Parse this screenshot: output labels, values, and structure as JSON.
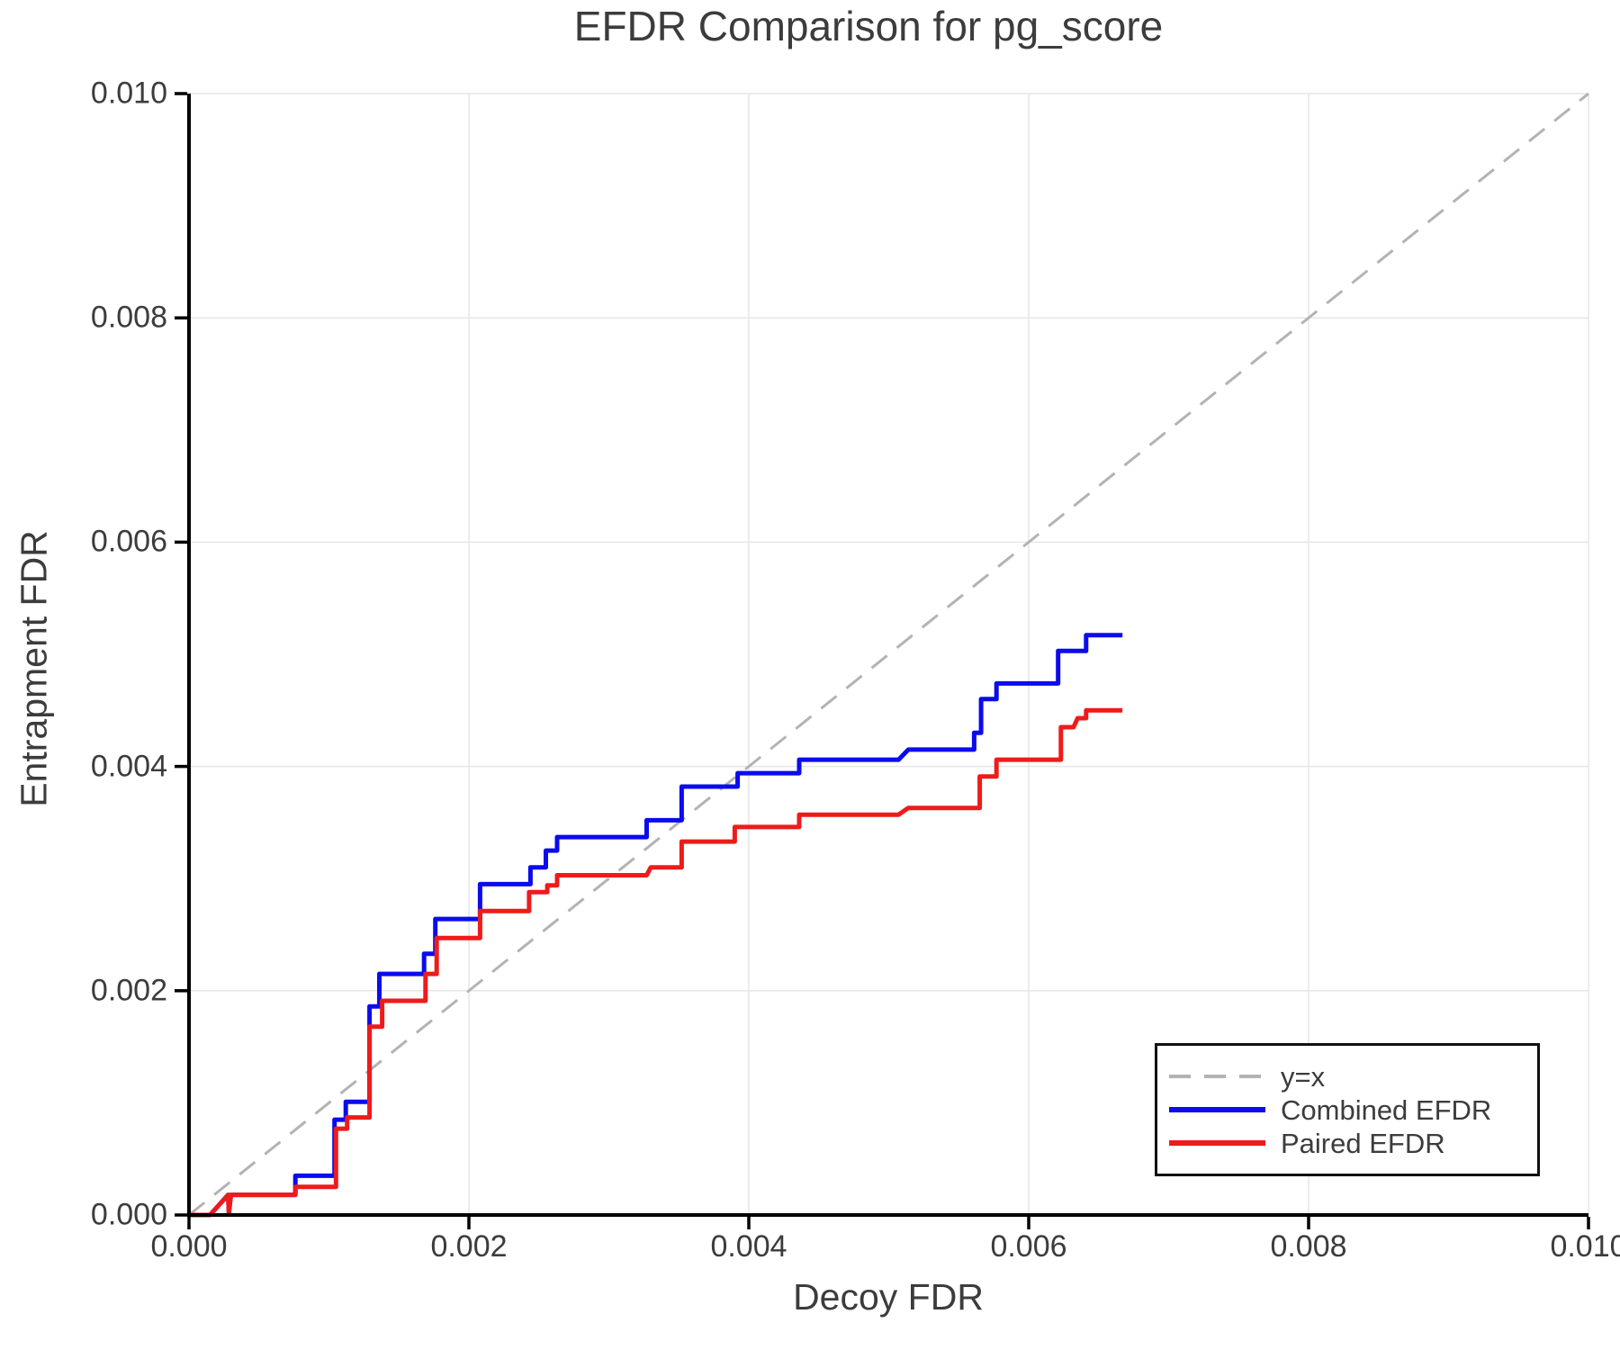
{
  "title": "EFDR Comparison for pg_score",
  "axes": {
    "x_label": "Decoy FDR",
    "y_label": "Entrapment FDR"
  },
  "legend": {
    "position": "lower right",
    "items": [
      {
        "label": "y=x"
      },
      {
        "label": "Combined EFDR"
      },
      {
        "label": "Paired EFDR"
      }
    ]
  },
  "colors": {
    "reference_line": "#b3b3b3",
    "combined": "#0b0bee",
    "paired": "#ee1b1b",
    "grid": "#e6e6e6",
    "axis": "#000000",
    "text": "#3c3c3c"
  },
  "chart_data": {
    "type": "line",
    "line_style": "step",
    "title": "EFDR Comparison for pg_score",
    "xlabel": "Decoy FDR",
    "ylabel": "Entrapment FDR",
    "xlim": [
      0.0,
      0.01
    ],
    "ylim": [
      0.0,
      0.01
    ],
    "grid": true,
    "legend_position": "lower right",
    "xticks": [
      0.0,
      0.002,
      0.004,
      0.006,
      0.008,
      0.01
    ],
    "xtick_labels": [
      "0.000",
      "0.002",
      "0.004",
      "0.006",
      "0.008",
      "0.010"
    ],
    "yticks": [
      0.0,
      0.002,
      0.004,
      0.006,
      0.008,
      0.01
    ],
    "ytick_labels": [
      "0.000",
      "0.002",
      "0.004",
      "0.006",
      "0.008",
      "0.010"
    ],
    "reference_line": {
      "name": "y=x",
      "style": "dashed",
      "color": "#b3b3b3",
      "from": [
        0.0,
        0.0
      ],
      "to": [
        0.01,
        0.01
      ]
    },
    "series": [
      {
        "name": "Combined EFDR",
        "color": "#0b0bee",
        "points": [
          [
            0.0,
            0.0
          ],
          [
            0.00015,
            0.0
          ],
          [
            0.00028,
            0.00018
          ],
          [
            0.000285,
            2e-05
          ],
          [
            0.0003,
            0.00018
          ],
          [
            0.00076,
            0.00018
          ],
          [
            0.00076,
            0.00035
          ],
          [
            0.00104,
            0.00035
          ],
          [
            0.00104,
            0.00085
          ],
          [
            0.00112,
            0.00085
          ],
          [
            0.00112,
            0.00101
          ],
          [
            0.00129,
            0.00101
          ],
          [
            0.00129,
            0.00186
          ],
          [
            0.00136,
            0.00186
          ],
          [
            0.00136,
            0.00215
          ],
          [
            0.00168,
            0.00215
          ],
          [
            0.00168,
            0.00233
          ],
          [
            0.00176,
            0.00233
          ],
          [
            0.00176,
            0.00264
          ],
          [
            0.00208,
            0.00264
          ],
          [
            0.00208,
            0.00295
          ],
          [
            0.00244,
            0.00295
          ],
          [
            0.00244,
            0.0031
          ],
          [
            0.00255,
            0.0031
          ],
          [
            0.00255,
            0.00325
          ],
          [
            0.00263,
            0.00325
          ],
          [
            0.00263,
            0.00337
          ],
          [
            0.00327,
            0.00337
          ],
          [
            0.00327,
            0.00352
          ],
          [
            0.00352,
            0.00352
          ],
          [
            0.00352,
            0.00382
          ],
          [
            0.00392,
            0.00382
          ],
          [
            0.00392,
            0.00394
          ],
          [
            0.00436,
            0.00394
          ],
          [
            0.00436,
            0.00406
          ],
          [
            0.00507,
            0.00406
          ],
          [
            0.00514,
            0.00415
          ],
          [
            0.00561,
            0.00415
          ],
          [
            0.00561,
            0.0043
          ],
          [
            0.00566,
            0.0043
          ],
          [
            0.00566,
            0.0046
          ],
          [
            0.00577,
            0.0046
          ],
          [
            0.00577,
            0.00474
          ],
          [
            0.00621,
            0.00474
          ],
          [
            0.00621,
            0.00503
          ],
          [
            0.00641,
            0.00503
          ],
          [
            0.00641,
            0.00517
          ],
          [
            0.00667,
            0.00517
          ]
        ]
      },
      {
        "name": "Paired EFDR",
        "color": "#ee1b1b",
        "points": [
          [
            0.0,
            0.0
          ],
          [
            0.00015,
            0.0
          ],
          [
            0.00028,
            0.00018
          ],
          [
            0.000285,
            2e-05
          ],
          [
            0.0003,
            0.00018
          ],
          [
            0.00076,
            0.00018
          ],
          [
            0.00076,
            0.00025
          ],
          [
            0.00105,
            0.00025
          ],
          [
            0.00105,
            0.00077
          ],
          [
            0.00113,
            0.00077
          ],
          [
            0.00113,
            0.00087
          ],
          [
            0.00129,
            0.00087
          ],
          [
            0.00129,
            0.00168
          ],
          [
            0.00138,
            0.00168
          ],
          [
            0.00138,
            0.00191
          ],
          [
            0.00169,
            0.00191
          ],
          [
            0.00169,
            0.00215
          ],
          [
            0.00177,
            0.00215
          ],
          [
            0.00177,
            0.00247
          ],
          [
            0.00208,
            0.00247
          ],
          [
            0.00208,
            0.00271
          ],
          [
            0.00243,
            0.00271
          ],
          [
            0.00243,
            0.00288
          ],
          [
            0.00256,
            0.00288
          ],
          [
            0.00256,
            0.00294
          ],
          [
            0.00263,
            0.00294
          ],
          [
            0.00263,
            0.00303
          ],
          [
            0.00327,
            0.00303
          ],
          [
            0.0033,
            0.0031
          ],
          [
            0.00352,
            0.0031
          ],
          [
            0.00352,
            0.00333
          ],
          [
            0.0039,
            0.00333
          ],
          [
            0.0039,
            0.00346
          ],
          [
            0.00436,
            0.00346
          ],
          [
            0.00436,
            0.00357
          ],
          [
            0.00507,
            0.00357
          ],
          [
            0.00514,
            0.00363
          ],
          [
            0.00565,
            0.00363
          ],
          [
            0.00565,
            0.00391
          ],
          [
            0.00577,
            0.00391
          ],
          [
            0.00577,
            0.00406
          ],
          [
            0.00623,
            0.00406
          ],
          [
            0.00623,
            0.00435
          ],
          [
            0.00632,
            0.00435
          ],
          [
            0.00635,
            0.00443
          ],
          [
            0.00641,
            0.00443
          ],
          [
            0.00641,
            0.0045
          ],
          [
            0.00667,
            0.0045
          ]
        ]
      }
    ]
  }
}
